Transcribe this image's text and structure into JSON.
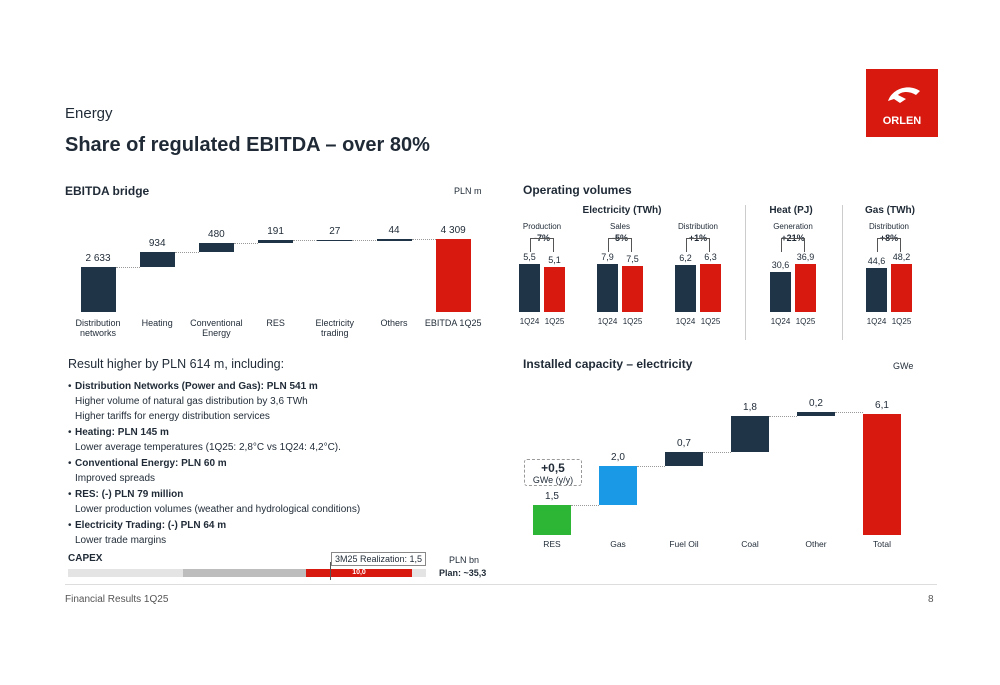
{
  "header": {
    "section": "Energy",
    "title": "Share of regulated EBITDA – over 80%"
  },
  "logo": "ORLEN",
  "ebitda_bridge": {
    "type": "waterfall",
    "title": "EBITDA bridge",
    "unit": "PLN m",
    "categories": [
      "Distribution networks",
      "Heating",
      "Conventional Energy",
      "RES",
      "Electricity trading",
      "Others",
      "EBITDA 1Q25"
    ],
    "values": [
      2633,
      934,
      480,
      191,
      27,
      44,
      4309
    ],
    "value_labels": [
      "2 633",
      "934",
      "480",
      "191",
      "27",
      "44",
      "4 309"
    ],
    "color": "#1f3447",
    "total_color": "#d7190f"
  },
  "operating_volumes": {
    "type": "grouped-bar",
    "title": "Operating volumes",
    "colors": [
      "#1f3447",
      "#d7190f"
    ],
    "groups": [
      {
        "name": "Electricity (TWh)",
        "panels": [
          {
            "name": "Production",
            "change": "-7%",
            "categories": [
              "1Q24",
              "1Q25"
            ],
            "values": [
              5.5,
              5.1
            ],
            "value_labels": [
              "5,5",
              "5,1"
            ]
          },
          {
            "name": "Sales",
            "change": "-5%",
            "categories": [
              "1Q24",
              "1Q25"
            ],
            "values": [
              7.9,
              7.5
            ],
            "value_labels": [
              "7,9",
              "7,5"
            ]
          },
          {
            "name": "Distribution",
            "change": "+1%",
            "categories": [
              "1Q24",
              "1Q25"
            ],
            "values": [
              6.2,
              6.3
            ],
            "value_labels": [
              "6,2",
              "6,3"
            ]
          }
        ]
      },
      {
        "name": "Heat (PJ)",
        "panels": [
          {
            "name": "Generation",
            "change": "+21%",
            "categories": [
              "1Q24",
              "1Q25"
            ],
            "values": [
              30.6,
              36.9
            ],
            "value_labels": [
              "30,6",
              "36,9"
            ]
          }
        ]
      },
      {
        "name": "Gas (TWh)",
        "panels": [
          {
            "name": "Distribution",
            "change": "+8%",
            "categories": [
              "1Q24",
              "1Q25"
            ],
            "values": [
              44.6,
              48.2
            ],
            "value_labels": [
              "44,6",
              "48,2"
            ]
          }
        ]
      }
    ]
  },
  "installed_capacity": {
    "type": "waterfall",
    "title": "Installed capacity – electricity",
    "unit": "GWe",
    "categories": [
      "RES",
      "Gas",
      "Fuel Oil",
      "Coal",
      "Other",
      "Total"
    ],
    "values": [
      1.5,
      2.0,
      0.7,
      1.8,
      0.2,
      6.1
    ],
    "value_labels": [
      "1,5",
      "2,0",
      "0,7",
      "1,8",
      "0,2",
      "6,1"
    ],
    "colors": [
      "#2db535",
      "#1a9ae6",
      "#1f3447",
      "#1f3447",
      "#1f3447",
      "#d7190f"
    ],
    "annotation": {
      "value": "+0,5",
      "unit": "GWe (y/y)"
    }
  },
  "results": {
    "title": "Result higher by PLN 614 m, including:",
    "items": [
      {
        "head": "Distribution Networks (Power and Gas): PLN 541 m",
        "lines": [
          "Higher volume of natural gas distribution by 3,6 TWh",
          "Higher tariffs for energy distribution services"
        ]
      },
      {
        "head": "Heating: PLN 145 m",
        "lines": [
          "Lower average temperatures (1Q25: 2,8°C vs 1Q24: 4,2°C)."
        ]
      },
      {
        "head": "Conventional Energy: PLN 60 m",
        "lines": [
          "Improved spreads"
        ]
      },
      {
        "head": "RES: (-) PLN 79 million",
        "lines": [
          "Lower production volumes (weather and hydrological conditions)"
        ]
      },
      {
        "head": "Electricity Trading: (-) PLN 64 m",
        "lines": [
          "Lower trade margins"
        ]
      }
    ]
  },
  "capex": {
    "title": "CAPEX",
    "realization": "3M25 Realization: 1,5",
    "unit": "PLN bn",
    "segment": "10,0",
    "plan": "Plan: ~35,3"
  },
  "footer": {
    "text": "Financial Results 1Q25",
    "page": "8"
  }
}
